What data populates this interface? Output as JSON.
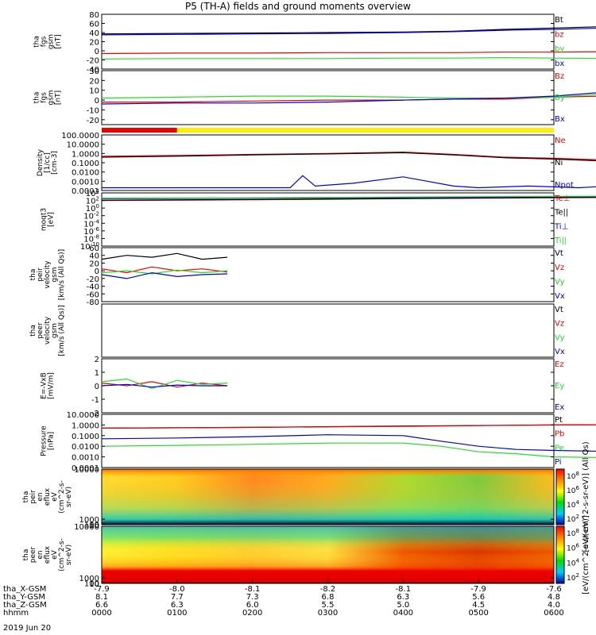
{
  "title": "P5 (TH-A) fields and ground moments overview",
  "date_label": "2019 Jun 20",
  "colors": {
    "black": "#000000",
    "red": "#ee0000",
    "green": "#22dd22",
    "blue": "#0000dd",
    "mode_red": "#ee0000",
    "mode_yellow": "#ffee00"
  },
  "chart_data": [
    {
      "type": "line",
      "id": "fgs_total",
      "ylabel_lines": [
        "tha",
        "fgs",
        "gsm",
        "[nT]"
      ],
      "ylim": [
        -40,
        80
      ],
      "yticks": [
        -40,
        -20,
        0,
        20,
        40,
        60,
        80
      ],
      "series": [
        {
          "name": "Bt",
          "color": "#000000",
          "x": [
            0,
            60,
            120,
            180,
            240,
            280,
            320,
            360,
            400,
            440,
            480,
            500,
            530,
            560,
            600
          ],
          "y": [
            37,
            38,
            39,
            40,
            41,
            43,
            47,
            50,
            53,
            55,
            58,
            65,
            63,
            56,
            55
          ]
        },
        {
          "name": "bz",
          "color": "#ee0000",
          "x": [
            0,
            60,
            120,
            180,
            240,
            280,
            320,
            360,
            400,
            440,
            480,
            520,
            560,
            600
          ],
          "y": [
            -6,
            -5,
            -5,
            -4,
            -4,
            -4,
            -3,
            -3,
            -2,
            0,
            3,
            5,
            4,
            6
          ]
        },
        {
          "name": "by",
          "color": "#22dd22",
          "x": [
            0,
            60,
            120,
            180,
            240,
            280,
            320,
            360,
            400,
            440,
            480,
            520,
            560,
            600
          ],
          "y": [
            -18,
            -17,
            -17,
            -17,
            -16,
            -16,
            -15,
            -16,
            -17,
            -22,
            -20,
            -25,
            -32,
            -35
          ]
        },
        {
          "name": "bx",
          "color": "#0000dd",
          "x": [
            0,
            60,
            120,
            180,
            240,
            280,
            320,
            360,
            400,
            440,
            480,
            500,
            530,
            560,
            600
          ],
          "y": [
            35,
            36,
            37,
            38,
            40,
            42,
            45,
            47,
            50,
            52,
            55,
            63,
            60,
            50,
            48
          ]
        }
      ]
    },
    {
      "type": "line",
      "id": "fgs_components",
      "ylabel_lines": [
        "tha",
        "fgs",
        "gsm",
        "[nT]"
      ],
      "ylim": [
        -25,
        30
      ],
      "yticks": [
        -20,
        -10,
        0,
        10,
        20,
        30
      ],
      "series": [
        {
          "name": "Bz",
          "color": "#ee0000",
          "x": [
            0,
            60,
            120,
            180,
            240,
            280,
            320,
            360,
            400,
            420,
            440,
            480,
            520,
            560,
            600
          ],
          "y": [
            -2,
            -2,
            -1,
            0,
            0,
            1,
            1,
            3,
            4,
            8,
            2,
            6,
            4,
            2,
            -2
          ]
        },
        {
          "name": "By",
          "color": "#22dd22",
          "x": [
            0,
            60,
            120,
            180,
            240,
            280,
            320,
            360,
            400,
            420,
            440,
            480,
            520,
            560,
            600
          ],
          "y": [
            2,
            3,
            4,
            4,
            3,
            2,
            2,
            3,
            6,
            2,
            10,
            3,
            -2,
            -5,
            -12
          ]
        },
        {
          "name": "Bx",
          "color": "#0000dd",
          "x": [
            0,
            60,
            120,
            180,
            240,
            280,
            320,
            360,
            400,
            420,
            440,
            480,
            500,
            530,
            560,
            600
          ],
          "y": [
            -4,
            -3,
            -3,
            -2,
            0,
            1,
            2,
            4,
            8,
            12,
            10,
            14,
            22,
            20,
            8,
            6
          ]
        }
      ]
    },
    {
      "type": "line",
      "id": "density",
      "log": true,
      "ylabel_lines": [
        "Density",
        "[1/cc]",
        "[cm-3]"
      ],
      "ylim": [
        0.0001,
        100
      ],
      "yticks": [
        0.0001,
        0.001,
        0.01,
        0.1,
        1,
        10,
        100
      ],
      "ytick_labels": [
        "0.0001",
        "0.0010",
        "0.0100",
        "0.1000",
        "1.0000",
        "10.0000",
        "100.0000"
      ],
      "series": [
        {
          "name": "Ne",
          "color": "#ee0000",
          "x": [
            0,
            60,
            120,
            180,
            240,
            280,
            320,
            360,
            400,
            440,
            480,
            520,
            560,
            600
          ],
          "y": [
            0.5,
            0.6,
            0.8,
            1,
            1.4,
            0.8,
            0.4,
            0.3,
            0.2,
            0.15,
            0.2,
            0.25,
            0.3,
            0.25
          ]
        },
        {
          "name": "Ni",
          "color": "#000000",
          "x": [
            0,
            60,
            120,
            180,
            240,
            280,
            320,
            360,
            400,
            440,
            480,
            520,
            560,
            600
          ],
          "y": [
            0.4,
            0.5,
            0.7,
            0.9,
            1.2,
            0.7,
            0.35,
            0.25,
            0.15,
            0.12,
            0.15,
            0.2,
            0.25,
            0.2
          ]
        },
        {
          "name": "Npot",
          "color": "#0000dd",
          "x": [
            0,
            100,
            150,
            160,
            170,
            200,
            240,
            280,
            300,
            340,
            380,
            420,
            480,
            540,
            600
          ],
          "y": [
            0.0002,
            0.0002,
            0.0002,
            0.004,
            0.0003,
            0.0006,
            0.003,
            0.0003,
            0.0002,
            0.0003,
            0.0002,
            0.0004,
            0.0002,
            0.00015,
            0.0002
          ]
        }
      ]
    },
    {
      "type": "line",
      "id": "temperature",
      "log": true,
      "ylabel_lines": [
        "moqt3",
        "[eV]"
      ],
      "ylim": [
        1e-10,
        10000
      ],
      "yticks": [
        1e-10,
        1e-08,
        1e-06,
        0.0001,
        0.01,
        1,
        100,
        10000
      ],
      "ytick_labels": [
        "10^-10",
        "10^-8",
        "10^-6",
        "10^-4",
        "10^-2",
        "10^0",
        "10^2",
        "10^4"
      ],
      "series": [
        {
          "name": "Te⊥",
          "color": "#ee0000",
          "x": [
            0,
            120,
            240,
            360,
            480,
            600
          ],
          "y": [
            100,
            150,
            300,
            500,
            800,
            1000
          ]
        },
        {
          "name": "Te||",
          "color": "#000000",
          "x": [
            0,
            120,
            240,
            360,
            480,
            600
          ],
          "y": [
            120,
            180,
            350,
            600,
            900,
            1200
          ]
        },
        {
          "name": "Ti⊥",
          "color": "#0000dd",
          "x": [
            0,
            120,
            240,
            360,
            480,
            600
          ],
          "y": [
            300,
            400,
            600,
            900,
            1500,
            2000
          ]
        },
        {
          "name": "Ti||",
          "color": "#22dd22",
          "x": [
            0,
            120,
            240,
            360,
            480,
            600
          ],
          "y": [
            400,
            500,
            800,
            1200,
            1800,
            2500
          ]
        }
      ]
    },
    {
      "type": "line",
      "id": "peir_velocity",
      "ylabel_lines": [
        "tha",
        "peir",
        "velocity",
        "gsm",
        "[km/s (All Qs)]"
      ],
      "ylim": [
        -80,
        60
      ],
      "yticks": [
        -80,
        -60,
        -40,
        -20,
        0,
        20,
        40,
        60
      ],
      "series": [
        {
          "name": "Vt",
          "color": "#000000",
          "x": [
            0,
            20,
            40,
            60,
            80,
            100
          ],
          "y": [
            30,
            40,
            35,
            45,
            30,
            35
          ]
        },
        {
          "name": "Vz",
          "color": "#ee0000",
          "x": [
            0,
            20,
            40,
            60,
            80,
            100
          ],
          "y": [
            5,
            -5,
            10,
            0,
            5,
            -3
          ]
        },
        {
          "name": "Vy",
          "color": "#22dd22",
          "x": [
            0,
            20,
            40,
            60,
            80,
            100
          ],
          "y": [
            -5,
            0,
            -8,
            2,
            -5,
            0
          ]
        },
        {
          "name": "Vx",
          "color": "#0000dd",
          "x": [
            0,
            20,
            40,
            60,
            80,
            100
          ],
          "y": [
            -10,
            -20,
            -5,
            -15,
            -10,
            -8
          ]
        }
      ]
    },
    {
      "type": "line",
      "id": "peer_velocity",
      "ylabel_lines": [
        "tha",
        "peer",
        "velocity",
        "gsm",
        "[km/s (All Qs)]"
      ],
      "series": [
        {
          "name": "Vt",
          "color": "#000000",
          "x": [],
          "y": []
        },
        {
          "name": "Vz",
          "color": "#ee0000",
          "x": [],
          "y": []
        },
        {
          "name": "Vy",
          "color": "#22dd22",
          "x": [],
          "y": []
        },
        {
          "name": "Vx",
          "color": "#0000dd",
          "x": [],
          "y": []
        }
      ]
    },
    {
      "type": "line",
      "id": "efield",
      "ylabel_lines": [
        "E=-VxB",
        "[mV/m]"
      ],
      "ylim": [
        -2,
        2
      ],
      "yticks": [
        -2,
        -1,
        0,
        1,
        2
      ],
      "series": [
        {
          "name": "Ez",
          "color": "#ee0000",
          "x": [
            0,
            20,
            40,
            60,
            80,
            100
          ],
          "y": [
            0.2,
            0,
            0.3,
            -0.1,
            0.2,
            0
          ]
        },
        {
          "name": "Ey",
          "color": "#22dd22",
          "x": [
            0,
            20,
            40,
            60,
            80,
            100
          ],
          "y": [
            0.3,
            0.5,
            -0.2,
            0.4,
            0.1,
            0.2
          ]
        },
        {
          "name": "Ex",
          "color": "#0000dd",
          "x": [
            0,
            20,
            40,
            60,
            80,
            100
          ],
          "y": [
            0,
            0.1,
            -0.1,
            0.05,
            0,
            0
          ]
        }
      ]
    },
    {
      "type": "line",
      "id": "pressure",
      "log": true,
      "ylabel_lines": [
        "Pressure",
        "[nPa]"
      ],
      "ylim": [
        0.0001,
        10
      ],
      "yticks": [
        0.0001,
        0.001,
        0.01,
        0.1,
        1,
        10
      ],
      "ytick_labels": [
        "0.0001",
        "0.0010",
        "0.0100",
        "0.1000",
        "1.0000",
        "10.0000"
      ],
      "series": [
        {
          "name": "Pt",
          "color": "#000000",
          "x": [
            0,
            120,
            240,
            360,
            480,
            600
          ],
          "y": [
            0.5,
            0.6,
            0.8,
            1,
            1.2,
            1.3
          ]
        },
        {
          "name": "Pb",
          "color": "#ee0000",
          "x": [
            0,
            120,
            240,
            360,
            480,
            600
          ],
          "y": [
            0.5,
            0.6,
            0.75,
            1,
            1.2,
            1.3
          ]
        },
        {
          "name": "Pe",
          "color": "#22dd22",
          "x": [
            0,
            60,
            120,
            180,
            240,
            270,
            300,
            330,
            360,
            420,
            480,
            540,
            600
          ],
          "y": [
            0.01,
            0.012,
            0.015,
            0.02,
            0.02,
            0.01,
            0.003,
            0.002,
            0.001,
            0.0008,
            0.001,
            0.0015,
            0.01
          ]
        },
        {
          "name": "Pi",
          "color": "#0000dd",
          "x": [
            0,
            60,
            120,
            180,
            240,
            270,
            300,
            330,
            360,
            420,
            480,
            540,
            600
          ],
          "y": [
            0.05,
            0.06,
            0.08,
            0.12,
            0.1,
            0.03,
            0.01,
            0.005,
            0.004,
            0.003,
            0.003,
            0.006,
            0.05
          ]
        }
      ]
    },
    {
      "type": "heatmap",
      "id": "peir_eflux",
      "ylabel_lines": [
        "tha",
        "peir",
        "en",
        "eflux",
        "eV",
        "(cm^2-s-",
        "sr-eV)"
      ],
      "ylim": [
        10,
        10000
      ],
      "yticks": [
        10,
        100,
        1000,
        10000
      ],
      "ytick_labels": [
        "10",
        "100",
        "1000",
        "10000"
      ],
      "colorbar_label": "[eV/(cm^2-s-sr-eV)] (All Qs)",
      "colorbar_ticks": [
        "10^8",
        "10^6",
        "10^4",
        "10^2"
      ]
    },
    {
      "type": "heatmap",
      "id": "peer_eflux",
      "ylabel_lines": [
        "tha",
        "peer",
        "en",
        "eflux",
        "eV",
        "(cm^2-s-",
        "sr-eV)"
      ],
      "ylim": [
        10,
        10000
      ],
      "yticks": [
        10,
        100,
        1000,
        10000
      ],
      "ytick_labels": [
        "10",
        "100",
        "1000",
        "10000"
      ],
      "colorbar_label": "[eV/(cm^2-s-sr-eV)]",
      "colorbar_ticks": [
        "10^8",
        "10^6",
        "10^4",
        "10^2"
      ]
    }
  ],
  "time_axis": {
    "x_range_minutes": [
      0,
      360
    ],
    "tick_minutes": [
      0,
      60,
      120,
      180,
      240,
      300,
      360
    ],
    "row_labels": [
      "tha_X-GSM",
      "tha_Y-GSM",
      "tha_Z-GSM",
      "hhmm"
    ],
    "rows": [
      [
        "-7.9",
        "-8.0",
        "-8.1",
        "-8.2",
        "-8.1",
        "-7.9",
        "-7.6"
      ],
      [
        "8.1",
        "7.7",
        "7.3",
        "6.8",
        "6.3",
        "5.6",
        "4.8"
      ],
      [
        "6.6",
        "6.3",
        "6.0",
        "5.5",
        "5.0",
        "4.5",
        "4.0"
      ],
      [
        "0000",
        "0100",
        "0200",
        "0300",
        "0400",
        "0500",
        "0600"
      ]
    ]
  },
  "mode_bar": {
    "segments": [
      {
        "x_start": 0,
        "x_end": 60,
        "color": "#ee0000"
      },
      {
        "x_start": 60,
        "x_end": 360,
        "color": "#ffee00"
      }
    ]
  }
}
